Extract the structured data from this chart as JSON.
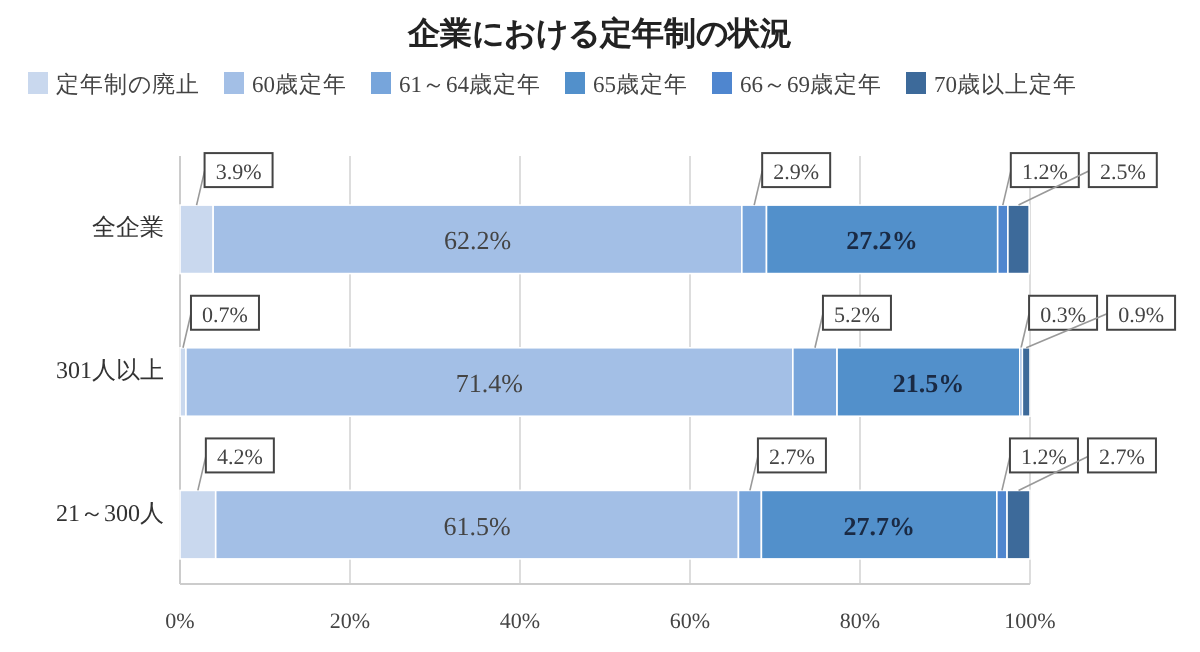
{
  "chart_data": {
    "type": "bar",
    "orientation": "horizontal",
    "stacked": true,
    "title": "企業における定年制の状況",
    "categories": [
      "全企業",
      "301人以上",
      "21～300人"
    ],
    "series": [
      {
        "name": "定年制の廃止",
        "color": "#c9d8ee",
        "values": [
          3.9,
          0.7,
          4.2
        ],
        "value_labels": [
          "3.9%",
          "0.7%",
          "4.2%"
        ]
      },
      {
        "name": "60歳定年",
        "color": "#a3bfe6",
        "values": [
          62.2,
          71.4,
          61.5
        ],
        "value_labels": [
          "62.2%",
          "71.4%",
          "61.5%"
        ]
      },
      {
        "name": "61～64歳定年",
        "color": "#77a5db",
        "values": [
          2.9,
          5.2,
          2.7
        ],
        "value_labels": [
          "2.9%",
          "5.2%",
          "2.7%"
        ]
      },
      {
        "name": "65歳定年",
        "color": "#5290cb",
        "values": [
          27.2,
          21.5,
          27.7
        ],
        "value_labels": [
          "27.2%",
          "21.5%",
          "27.7%"
        ]
      },
      {
        "name": "66～69歳定年",
        "color": "#4f86cf",
        "values": [
          1.2,
          0.3,
          1.2
        ],
        "value_labels": [
          "1.2%",
          "0.3%",
          "1.2%"
        ]
      },
      {
        "name": "70歳以上定年",
        "color": "#3d6a9a",
        "values": [
          2.5,
          0.9,
          2.7
        ],
        "value_labels": [
          "2.5%",
          "0.9%",
          "2.7%"
        ]
      }
    ],
    "xlim": [
      0,
      100
    ],
    "xticks": [
      {
        "value": 0,
        "label": "0%"
      },
      {
        "value": 20,
        "label": "20%"
      },
      {
        "value": 40,
        "label": "40%"
      },
      {
        "value": 60,
        "label": "60%"
      },
      {
        "value": 80,
        "label": "80%"
      },
      {
        "value": 100,
        "label": "100%"
      }
    ],
    "grid": "x",
    "legend": "top"
  }
}
